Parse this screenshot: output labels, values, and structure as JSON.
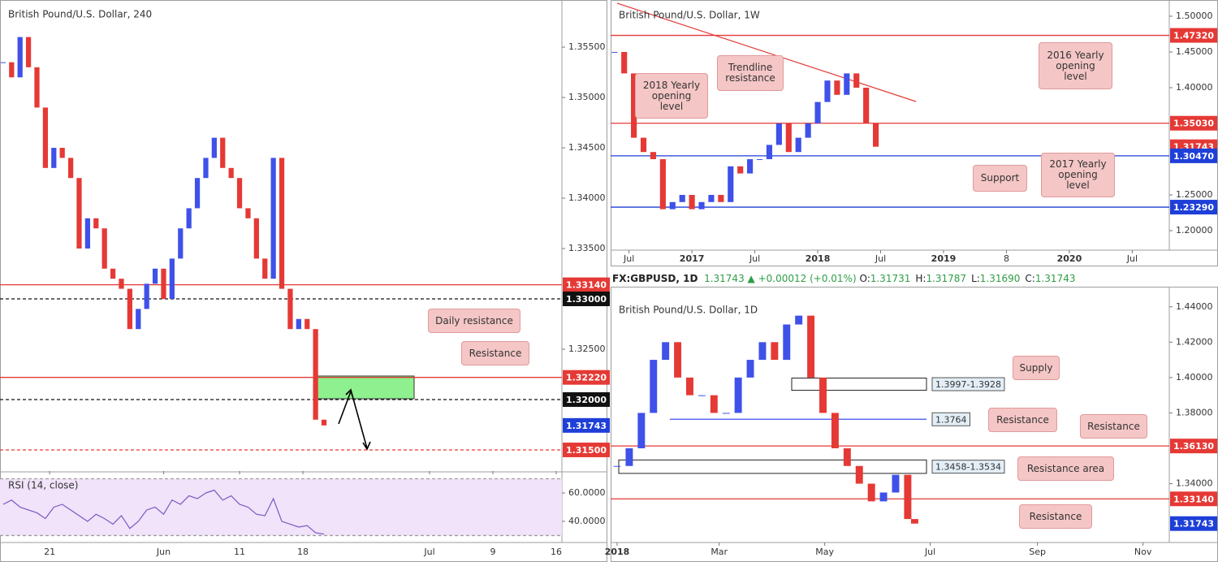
{
  "chart_data": [
    {
      "type": "candlestick",
      "title": "British Pound/U.S. Dollar, 240",
      "up_color": "#3f51e8",
      "down_color": "#e53935",
      "xlim": [
        -23.5,
        242.7
      ],
      "ylim": [
        1.3129,
        1.35968
      ],
      "xticks": [
        {
          "value": 0,
          "label": "21"
        },
        {
          "value": 54,
          "label": "Jun"
        },
        {
          "value": 90,
          "label": "11"
        },
        {
          "value": 120,
          "label": "18"
        },
        {
          "value": 180,
          "label": "Jul"
        },
        {
          "value": 210,
          "label": "9"
        },
        {
          "value": 240,
          "label": "16"
        }
      ],
      "yticks": [
        {
          "value": 1.355,
          "label": "1.35500"
        },
        {
          "value": 1.35,
          "label": "1.35000"
        },
        {
          "value": 1.345,
          "label": "1.34500"
        },
        {
          "value": 1.34,
          "label": "1.34000"
        },
        {
          "value": 1.335,
          "label": "1.33500"
        },
        {
          "value": 1.325,
          "label": "1.32500"
        }
      ],
      "levels": [
        {
          "value": 1.3314,
          "label": "1.33140",
          "color": "#e53935",
          "style": "solid"
        },
        {
          "value": 1.33,
          "label": "1.33000",
          "color": "#111111",
          "style": "dashed"
        },
        {
          "value": 1.3222,
          "label": "1.32220",
          "color": "#e53935",
          "style": "solid"
        },
        {
          "value": 1.32,
          "label": "1.32000",
          "color": "#111111",
          "style": "dashed"
        },
        {
          "value": 1.31743,
          "label": "1.31743",
          "color": "#1e3fd8",
          "style": "none"
        },
        {
          "value": 1.315,
          "label": "1.31500",
          "color": "#e53935",
          "style": "dashed"
        }
      ],
      "x": [
        -22,
        -18,
        -14,
        -10,
        -6,
        -2,
        2,
        6,
        10,
        14,
        18,
        22,
        26,
        30,
        34,
        38,
        42,
        46,
        50,
        54,
        58,
        62,
        66,
        70,
        74,
        78,
        82,
        86,
        90,
        94,
        98,
        102,
        106,
        110,
        114,
        118,
        122,
        126,
        130
      ],
      "closes": [
        1.3535,
        1.352,
        1.356,
        1.353,
        1.349,
        1.343,
        1.345,
        1.344,
        1.342,
        1.335,
        1.338,
        1.337,
        1.333,
        1.332,
        1.331,
        1.327,
        1.329,
        1.3315,
        1.333,
        1.33,
        1.334,
        1.337,
        1.339,
        1.342,
        1.344,
        1.346,
        1.343,
        1.342,
        1.339,
        1.338,
        1.334,
        1.332,
        1.344,
        1.331,
        1.327,
        1.328,
        1.327,
        1.318,
        1.31743
      ],
      "callouts": [
        "Daily resistance",
        "Resistance"
      ]
    },
    {
      "type": "line",
      "title": "RSI (14, close)",
      "color": "#7e57c2",
      "xlim": [
        -23.5,
        242.7
      ],
      "ylim": [
        25.1,
        74.3
      ],
      "yticks": [
        {
          "value": 60,
          "label": "60.0000"
        },
        {
          "value": 40,
          "label": "40.0000"
        }
      ],
      "levels": [
        {
          "value": 70,
          "color": "#9e9e9e",
          "style": "dashed"
        },
        {
          "value": 30,
          "color": "#9e9e9e",
          "style": "dashed"
        }
      ],
      "x": [
        -22,
        -18,
        -14,
        -10,
        -6,
        -2,
        2,
        6,
        10,
        14,
        18,
        22,
        26,
        30,
        34,
        38,
        42,
        46,
        50,
        54,
        58,
        62,
        66,
        70,
        74,
        78,
        82,
        86,
        90,
        94,
        98,
        102,
        106,
        110,
        114,
        118,
        122,
        126,
        130
      ],
      "values": [
        52,
        55,
        50,
        48,
        46,
        42,
        50,
        52,
        48,
        44,
        40,
        45,
        42,
        38,
        44,
        35,
        40,
        48,
        50,
        45,
        55,
        52,
        58,
        56,
        60,
        62,
        55,
        58,
        52,
        50,
        45,
        44,
        56,
        40,
        38,
        36,
        37,
        32,
        31
      ]
    },
    {
      "type": "candlestick",
      "title": "British Pound/U.S. Dollar, 1W",
      "up_color": "#3f51e8",
      "down_color": "#e53935",
      "xlim": [
        -33.6,
        197.3
      ],
      "ylim": [
        1.17273,
        1.5227
      ],
      "xticks": [
        {
          "value": -26,
          "label": "Jul"
        },
        {
          "value": 0,
          "label": "2017"
        },
        {
          "value": 26,
          "label": "Jul"
        },
        {
          "value": 52,
          "label": "2018"
        },
        {
          "value": 78,
          "label": "Jul"
        },
        {
          "value": 104,
          "label": "2019"
        },
        {
          "value": 130,
          "label": "8"
        },
        {
          "value": 156,
          "label": "2020"
        },
        {
          "value": 182,
          "label": "Jul"
        }
      ],
      "yticks": [
        {
          "value": 1.5,
          "label": "1.50000"
        },
        {
          "value": 1.45,
          "label": "1.45000"
        },
        {
          "value": 1.4,
          "label": "1.40000"
        },
        {
          "value": 1.25,
          "label": "1.25000"
        },
        {
          "value": 1.2,
          "label": "1.20000"
        }
      ],
      "levels": [
        {
          "value": 1.4732,
          "label": "1.47320",
          "color": "#e53935",
          "style": "solid"
        },
        {
          "value": 1.3503,
          "label": "1.35030",
          "color": "#e53935",
          "style": "solid"
        },
        {
          "value": 1.31743,
          "label": "1.31743",
          "color": "#e53935",
          "style": "none"
        },
        {
          "value": 1.3047,
          "label": "1.30470",
          "color": "#1e3fd8",
          "style": "solid"
        },
        {
          "value": 1.2329,
          "label": "1.23290",
          "color": "#1e3fd8",
          "style": "solid"
        }
      ],
      "x": [
        -32,
        -28,
        -24,
        -20,
        -16,
        -12,
        -8,
        -4,
        0,
        4,
        8,
        12,
        16,
        20,
        24,
        28,
        32,
        36,
        40,
        44,
        48,
        52,
        56,
        60,
        64,
        68,
        72,
        76
      ],
      "closes": [
        1.45,
        1.42,
        1.33,
        1.31,
        1.3,
        1.23,
        1.24,
        1.25,
        1.23,
        1.24,
        1.25,
        1.24,
        1.29,
        1.28,
        1.3,
        1.3,
        1.32,
        1.35,
        1.31,
        1.33,
        1.35,
        1.38,
        1.41,
        1.39,
        1.42,
        1.4,
        1.35,
        1.31743
      ],
      "callouts": [
        "Trendline resistance",
        "2018 Yearly opening level",
        "2016 Yearly opening level",
        "Support",
        "2017 Yearly opening level"
      ]
    },
    {
      "type": "candlestick",
      "title": "British Pound/U.S. Dollar, 1D",
      "up_color": "#3f51e8",
      "down_color": "#e53935",
      "xlim": [
        -3.76,
        319.2
      ],
      "ylim": [
        1.30673,
        1.45091
      ],
      "xticks": [
        {
          "value": 0,
          "label": "2018"
        },
        {
          "value": 59,
          "label": "Mar"
        },
        {
          "value": 120,
          "label": "May"
        },
        {
          "value": 181,
          "label": "Jul"
        },
        {
          "value": 243,
          "label": "Sep"
        },
        {
          "value": 304,
          "label": "Nov"
        }
      ],
      "yticks": [
        {
          "value": 1.44,
          "label": "1.44000"
        },
        {
          "value": 1.42,
          "label": "1.42000"
        },
        {
          "value": 1.4,
          "label": "1.40000"
        },
        {
          "value": 1.38,
          "label": "1.38000"
        },
        {
          "value": 1.34,
          "label": "1.34000"
        }
      ],
      "levels": [
        {
          "value": 1.3613,
          "label": "1.36130",
          "color": "#e53935",
          "style": "solid"
        },
        {
          "value": 1.3314,
          "label": "1.33140",
          "color": "#e53935",
          "style": "solid"
        },
        {
          "value": 1.31743,
          "label": "1.31743",
          "color": "#1e3fd8",
          "style": "none"
        }
      ],
      "zones": [
        {
          "from": 1.3928,
          "to": 1.3997,
          "label": "1.3997-1.3928",
          "style": "box"
        },
        {
          "from": 1.3764,
          "to": 1.3764,
          "label": "1.3764",
          "style": "line"
        },
        {
          "from": 1.3458,
          "to": 1.3534,
          "label": "1.3458-1.3534",
          "style": "box"
        }
      ],
      "x": [
        0,
        7,
        14,
        21,
        28,
        35,
        42,
        49,
        56,
        63,
        70,
        77,
        84,
        91,
        98,
        105,
        112,
        119,
        126,
        133,
        140,
        147,
        154,
        161,
        168,
        172
      ],
      "closes": [
        1.35,
        1.36,
        1.38,
        1.41,
        1.42,
        1.4,
        1.39,
        1.39,
        1.38,
        1.38,
        1.4,
        1.41,
        1.42,
        1.41,
        1.43,
        1.435,
        1.4,
        1.38,
        1.36,
        1.35,
        1.34,
        1.33,
        1.335,
        1.345,
        1.32,
        1.31743
      ],
      "callouts": [
        "Supply",
        "Resistance",
        "Resistance area",
        "Resistance",
        "Resistance"
      ]
    }
  ],
  "quote": {
    "symbol": "FX:GBPUSD, 1D",
    "last": "1.31743",
    "change": "+0.00012 (+0.01%)",
    "ohlc": [
      {
        "key": "O:",
        "value": "1.31731"
      },
      {
        "key": "H:",
        "value": "1.31787"
      },
      {
        "key": "L:",
        "value": "1.31690"
      },
      {
        "key": "C:",
        "value": "1.31743"
      }
    ]
  }
}
